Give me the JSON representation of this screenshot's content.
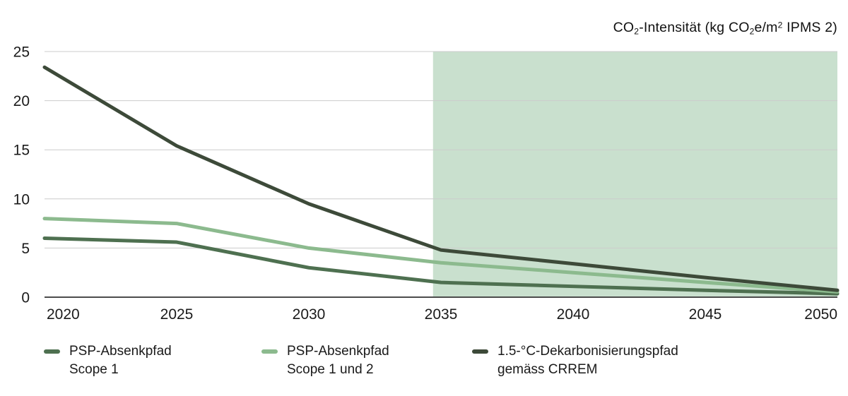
{
  "title": {
    "plain": "CO2-Intensität (kg CO2e/m2 IPMS 2)",
    "segments": [
      {
        "text": "CO"
      },
      {
        "text": "2",
        "style": "sub"
      },
      {
        "text": "-Intensität (kg CO"
      },
      {
        "text": "2",
        "style": "sub"
      },
      {
        "text": "e/m"
      },
      {
        "text": "2",
        "style": "sup"
      },
      {
        "text": " IPMS 2)"
      }
    ]
  },
  "legend": {
    "items": [
      {
        "label_line1": "PSP-Absenkpfad",
        "label_line2": "Scope 1",
        "color": "#4e7050"
      },
      {
        "label_line1": "PSP-Absenkpfad",
        "label_line2": "Scope 1 und 2",
        "color": "#8cba8e"
      },
      {
        "label_line1": "1.5-°C-Dekarbonisierungspfad",
        "label_line2": "gemäss CRREM",
        "color": "#3d4a39"
      }
    ]
  },
  "chart_data": {
    "type": "line",
    "title": "CO2-Intensität (kg CO2e/m2 IPMS 2)",
    "x": [
      2020,
      2025,
      2030,
      2035,
      2040,
      2045,
      2050
    ],
    "x_tick_labels": [
      "2020",
      "2025",
      "2030",
      "2035",
      "2040",
      "2045",
      "2050"
    ],
    "xlim": [
      2020,
      2050
    ],
    "ylim": [
      0,
      25
    ],
    "y_ticks": [
      0,
      5,
      10,
      15,
      20,
      25
    ],
    "y_tick_labels": [
      "0",
      "5",
      "10",
      "15",
      "20",
      "25"
    ],
    "series": [
      {
        "name": "PSP-Absenkpfad Scope 1",
        "color": "#4e7050",
        "values": [
          6.0,
          5.6,
          3.0,
          1.5,
          1.1,
          0.7,
          0.35
        ]
      },
      {
        "name": "PSP-Absenkpfad Scope 1 und 2",
        "color": "#8cba8e",
        "values": [
          8.0,
          7.5,
          5.0,
          3.5,
          2.5,
          1.5,
          0.55
        ]
      },
      {
        "name": "1.5-°C-Dekarbonisierungspfad gemäss CRREM",
        "color": "#3d4a39",
        "values": [
          23.4,
          15.4,
          9.5,
          4.8,
          3.4,
          2.0,
          0.7
        ]
      }
    ],
    "highlight_region": {
      "x_start": 2034.7,
      "x_end": 2050,
      "color": "#c9e0ce"
    },
    "grid": "horizontal",
    "grid_color": "#cccccc",
    "zero_axis_color": "#4c4c4c",
    "line_width": 5,
    "legend_position": "bottom"
  }
}
